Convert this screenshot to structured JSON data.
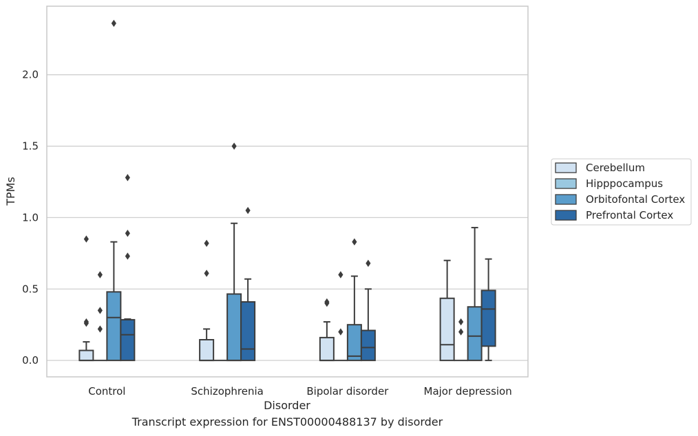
{
  "caption": "Transcript expression for ENST00000488137 by disorder",
  "chart_data": {
    "type": "box",
    "xlabel": "Disorder",
    "ylabel": "TPMs",
    "categories": [
      "Control",
      "Schizophrenia",
      "Bipolar disorder",
      "Major depression"
    ],
    "ylim": [
      -0.115,
      2.48
    ],
    "yticks": [
      0.0,
      0.5,
      1.0,
      1.5,
      2.0
    ],
    "ytick_labels": [
      "0.0",
      "0.5",
      "1.0",
      "1.5",
      "2.0"
    ],
    "grid": "horizontal",
    "legend_position": "right",
    "series": [
      {
        "name": "Cerebellum",
        "color": "#d1e2f2",
        "boxes": [
          {
            "min": 0.0,
            "q1": 0.0,
            "median": 0.0,
            "q3": 0.07,
            "max": 0.13,
            "outliers": [
              0.85,
              0.27,
              0.26
            ]
          },
          {
            "min": 0.0,
            "q1": 0.0,
            "median": 0.0,
            "q3": 0.145,
            "max": 0.22,
            "outliers": [
              0.82,
              0.61
            ]
          },
          {
            "min": 0.0,
            "q1": 0.0,
            "median": 0.0,
            "q3": 0.16,
            "max": 0.27,
            "outliers": [
              0.41,
              0.4
            ]
          },
          {
            "min": 0.0,
            "q1": 0.0,
            "median": 0.11,
            "q3": 0.435,
            "max": 0.7,
            "outliers": []
          }
        ]
      },
      {
        "name": "Hipppocampus",
        "color": "#9ac8e0",
        "boxes": [
          {
            "min": 0.0,
            "q1": 0.0,
            "median": 0.0,
            "q3": 0.0,
            "max": 0.0,
            "outliers": [
              0.6,
              0.35,
              0.22
            ]
          },
          {
            "min": 0.0,
            "q1": 0.0,
            "median": 0.0,
            "q3": 0.0,
            "max": 0.0,
            "outliers": []
          },
          {
            "min": 0.0,
            "q1": 0.0,
            "median": 0.0,
            "q3": 0.0,
            "max": 0.0,
            "outliers": [
              0.6,
              0.2
            ]
          },
          {
            "min": 0.0,
            "q1": 0.0,
            "median": 0.0,
            "q3": 0.0,
            "max": 0.0,
            "outliers": [
              0.27,
              0.2
            ]
          }
        ]
      },
      {
        "name": "Orbitofontal Cortex",
        "color": "#5a9dcb",
        "boxes": [
          {
            "min": 0.0,
            "q1": 0.0,
            "median": 0.3,
            "q3": 0.48,
            "max": 0.83,
            "outliers": [
              2.36
            ]
          },
          {
            "min": 0.0,
            "q1": 0.0,
            "median": 0.0,
            "q3": 0.465,
            "max": 0.96,
            "outliers": [
              1.5
            ]
          },
          {
            "min": 0.0,
            "q1": 0.0,
            "median": 0.03,
            "q3": 0.25,
            "max": 0.59,
            "outliers": [
              0.83
            ]
          },
          {
            "min": 0.0,
            "q1": 0.0,
            "median": 0.17,
            "q3": 0.375,
            "max": 0.93,
            "outliers": []
          }
        ]
      },
      {
        "name": "Prefrontal Cortex",
        "color": "#2d6aa6",
        "boxes": [
          {
            "min": 0.0,
            "q1": 0.0,
            "median": 0.18,
            "q3": 0.285,
            "max": 0.29,
            "outliers": [
              1.28,
              0.89,
              0.73
            ]
          },
          {
            "min": 0.0,
            "q1": 0.0,
            "median": 0.08,
            "q3": 0.41,
            "max": 0.57,
            "outliers": [
              1.05
            ]
          },
          {
            "min": 0.0,
            "q1": 0.0,
            "median": 0.09,
            "q3": 0.21,
            "max": 0.5,
            "outliers": [
              0.68
            ]
          },
          {
            "min": 0.0,
            "q1": 0.1,
            "median": 0.36,
            "q3": 0.49,
            "max": 0.71,
            "outliers": []
          }
        ]
      }
    ]
  }
}
